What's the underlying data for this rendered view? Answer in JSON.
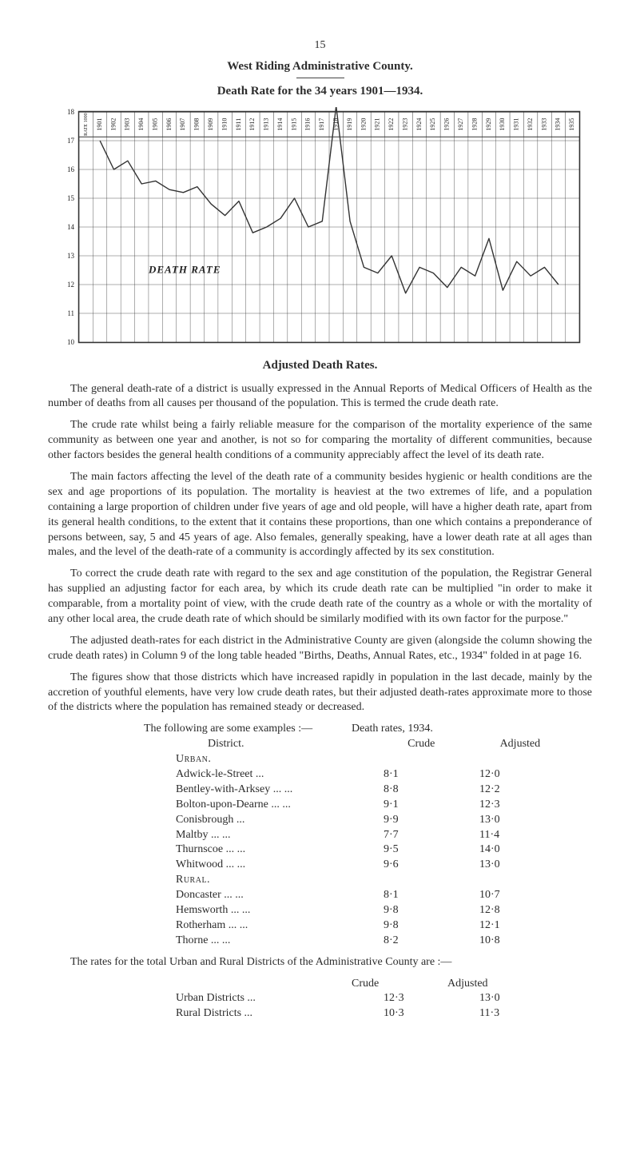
{
  "page_number": "15",
  "heading1": "West Riding Administrative County.",
  "heading2": "Death Rate for the 34 years 1901—1934.",
  "chart": {
    "type": "line",
    "years": [
      "RATE 1000",
      "1901",
      "1902",
      "1903",
      "1904",
      "1905",
      "1906",
      "1907",
      "1908",
      "1909",
      "1910",
      "1911",
      "1912",
      "1913",
      "1914",
      "1915",
      "1916",
      "1917",
      "1918",
      "1919",
      "1920",
      "1921",
      "1922",
      "1923",
      "1924",
      "1925",
      "1926",
      "1927",
      "1928",
      "1929",
      "1930",
      "1931",
      "1932",
      "1933",
      "1934",
      "1935"
    ],
    "ylabels": [
      "18",
      "17",
      "16",
      "15",
      "14",
      "13",
      "12",
      "11",
      "10"
    ],
    "ylim": [
      10,
      18
    ],
    "series": [
      17.0,
      16.0,
      16.3,
      15.5,
      15.6,
      15.3,
      15.2,
      15.4,
      14.8,
      14.4,
      14.9,
      13.8,
      14.0,
      14.3,
      15.0,
      14.0,
      14.2,
      18.2,
      14.2,
      12.6,
      12.4,
      13.0,
      11.7,
      12.6,
      12.4,
      11.9,
      12.6,
      12.3,
      13.6,
      11.8,
      12.8,
      12.3,
      12.6,
      12.0
    ],
    "label": "DEATH RATE",
    "line_color": "#333333",
    "grid_color": "#333333",
    "background_color": "#ffffff"
  },
  "caption": "Adjusted Death Rates.",
  "paragraphs": {
    "p1": "The general death-rate of a district is usually expressed in the Annual Reports of Medical Officers of Health as the number of deaths from all causes per thousand of the population. This is termed the crude death rate.",
    "p2": "The crude rate whilst being a fairly reliable measure for the comparison of the mortality experience of the same community as between one year and another, is not so for comparing the mortality of different communities, because other factors besides the general health conditions of a community appreciably affect the level of its death rate.",
    "p3": "The main factors affecting the level of the death rate of a community besides hygienic or health conditions are the sex and age proportions of its population. The mortality is heaviest at the two extremes of life, and a population containing a large proportion of children under five years of age and old people, will have a higher death rate, apart from its general health conditions, to the extent that it contains these proportions, than one which contains a prepon­derance of persons between, say, 5 and 45 years of age. Also females, generally speaking, have a lower death rate at all ages than males, and the level of the death-rate of a community is accor­dingly affected by its sex constitution.",
    "p4": "To correct the crude death rate with regard to the sex and age constitution of the population, the Registrar General has supplied an adjusting factor for each area, by which its crude death rate can be multiplied \"in order to make it comparable, from a mortality point of view, with the crude death rate of the country as a whole or with the mortality of any other local area, the crude death rate of which should be similarly modified with its own factor for the purpose.\"",
    "p5": "The adjusted death-rates for each district in the Administrative County are given (alongside the column showing the crude death rates) in Column 9 of the long table headed \"Births, Deaths, Annual Rates, etc., 1934\" folded in at page 16.",
    "p6": "The figures show that those districts which have increased rapidly in population in the last decade, mainly by the accretion of youthful elements, have very low crude death rates, but their adjusted death-rates approximate more to those of the districts where the population has remained steady or decreased."
  },
  "examples_intro": "The following are some examples :—",
  "rates_header": "Death rates, 1934.",
  "col_district": "District.",
  "col_crude": "Crude",
  "col_adjusted": "Adjusted",
  "group_urban": "Urban.",
  "group_rural": "Rural.",
  "urban_rows": [
    {
      "name": "Adwick-le-Street  ...",
      "crude": "8·1",
      "adj": "12·0"
    },
    {
      "name": "Bentley-with-Arksey",
      "crude": "8·8",
      "adj": "12·2"
    },
    {
      "name": "Bolton-upon-Dearne",
      "crude": "9·1",
      "adj": "12·3"
    },
    {
      "name": "Conisbrough        ...",
      "crude": "9·9",
      "adj": "13·0"
    },
    {
      "name": "Maltby        ...        ...",
      "crude": "7·7",
      "adj": "11·4"
    },
    {
      "name": "Thurnscoe",
      "crude": "9·5",
      "adj": "14·0"
    },
    {
      "name": "Whitwood",
      "crude": "9·6",
      "adj": "13·0"
    }
  ],
  "rural_rows": [
    {
      "name": "Doncaster  ...        ...",
      "crude": "8·1",
      "adj": "10·7"
    },
    {
      "name": "Hemsworth",
      "crude": "9·8",
      "adj": "12·8"
    },
    {
      "name": "Rotherham",
      "crude": "9·8",
      "adj": "12·1"
    },
    {
      "name": "Thorne        ...        ...",
      "crude": "8·2",
      "adj": "10·8"
    }
  ],
  "totals_intro": "The rates for the total Urban and Rural Districts of the Administrative County are :—",
  "totals_col_crude": "Crude",
  "totals_col_adj": "Adjusted",
  "totals_rows": [
    {
      "name": "Urban Districts   ...",
      "crude": "12·3",
      "adj": "13·0"
    },
    {
      "name": "Rural Districts   ...",
      "crude": "10·3",
      "adj": "11·3"
    }
  ]
}
